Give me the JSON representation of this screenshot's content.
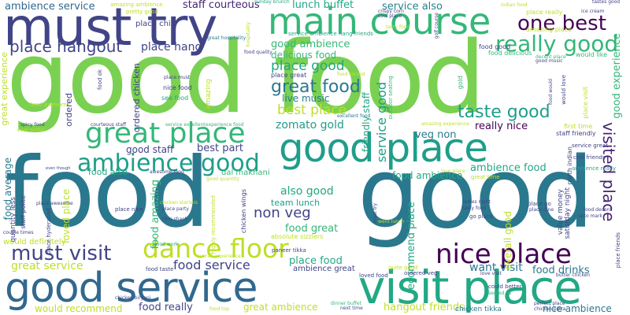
{
  "palette": [
    "#7ad151",
    "#22a884",
    "#2a788e",
    "#414487",
    "#440154",
    "#bddf26",
    "#35b779",
    "#31688e",
    "#482475",
    "#1f9e89",
    "#d8e219"
  ],
  "words": {
    "good_food": "good food",
    "must_try": "must try",
    "main_course": "main course",
    "food": "food",
    "good": "good",
    "good_service": "good service",
    "visit_place": "visit place",
    "good_place": "good place",
    "great_place": "great place",
    "nice_place": "nice place",
    "really_good": "really good",
    "ambience_good": "ambience good",
    "dance_floor": "dance floor",
    "must_visit": "must visit",
    "one_best": "one best",
    "place_hangout": "place hangout",
    "great_food": "great food",
    "taste_good": "taste good",
    "ambience_service": "ambience service",
    "staff_courteous": "staff courteous",
    "lunch_buffet": "lunch buffet",
    "service_also": "service also",
    "place_hang": "place hang",
    "place_chill": "place chill",
    "good_ambience": "good ambience",
    "place_good": "place good",
    "delicious_food": "delicious food",
    "best_place": "best place",
    "live_music": "live music",
    "zomato_gold": "zomato gold",
    "service_good": "service good",
    "friendly_staff": "friendly staff",
    "really_nice": "really nice",
    "veg_non": "veg non",
    "food_ambience": "food ambience",
    "ambience_food": "ambience food",
    "visited_place": "visited place",
    "food_average": "food average",
    "good_staff": "good staff",
    "best_part": "best part",
    "food_also": "food also",
    "loved_place": "loved place",
    "food_amazing": "food amazing",
    "also_good": "also good",
    "non_veg": "non veg",
    "food_great": "food great",
    "food_service": "food service",
    "team_lunch": "team lunch",
    "place_food": "place food",
    "food_drinks": "food drinks",
    "great_service": "great service",
    "want_visit": "want visit",
    "recommend_place": "recommend place",
    "overall_good": "overall good",
    "would_recommend": "would recommend",
    "food_really": "food really",
    "great_ambience": "great ambience",
    "hangout_friends": "hangout friends",
    "nice_ambience": "nice ambience",
    "place_visit": "place visit",
    "tasted_good": "tasted good",
    "ambience_great": "ambience great",
    "chicken_tikka": "chicken tikka",
    "serve_good": "service good",
    "value_money": "value money",
    "saturday_night": "saturday night",
    "place_hangout2": "place friends",
    "staff_friendly": "staff friendly",
    "service_great": "service great",
    "chill_friends": "chill friends",
    "ambience_really": "ambience really",
    "would_definitely": "would definitely",
    "quantity_less": "quantity less",
    "staff_polite": "staff polite",
    "place_hyderabad": "place hyderabad",
    "food_ok": "food ok",
    "food_good": "food good",
    "amazing_place": "amazing place",
    "place_really": "place really",
    "pretty_good": "pretty good",
    "buffet_spread": "buffet spread",
    "amazing_ambience": "amazing ambience",
    "great_hospitality": "great hospitality",
    "crispy_corn": "crispy corn",
    "cool_place": "cool place",
    "tasty_food": "tasty food",
    "indian_food": "indian food",
    "ice_cream": "ice cream",
    "tastes_good": "tastes good",
    "golf_course": "golf course",
    "service_ambience": "service ambience",
    "hang_friends": "hang friends",
    "good_music": "good music",
    "food_delicious": "food delicious",
    "decent_place": "decent place",
    "would_like": "would like",
    "good_experience": "good experience",
    "great_experience": "great experience",
    "ordered_chicken": "ordered chicken",
    "food_quality": "food quality",
    "place_great": "place great",
    "food_served": "food served",
    "great_taste": "great taste",
    "nice_food": "nice food",
    "sea_food": "sea food",
    "place_must": "place must",
    "food_awesome": "food awesome",
    "spicy_food": "spicy food",
    "even_better": "even better",
    "courteous_staff": "courteous staff",
    "service_excellent": "service excellent",
    "experience_food": "experience food",
    "excellent_food": "excellent food",
    "amazing_food": "amazing food",
    "amazing_experience": "amazing experience",
    "first_time": "first time",
    "service_great2": "service great",
    "north_indian": "north indian",
    "love_place": "love place",
    "great_time": "great time",
    "ordered": "ordered",
    "sunday_brunch": "sunday brunch",
    "amazing": "amazing",
    "awesome_food": "awesome food",
    "dal_makhani": "dal makhani",
    "good_quantity": "good quantity",
    "even_though": "even though",
    "couple_times": "couple times",
    "place_awesome": "place awesome",
    "place_nice": "place nice",
    "chicken_wings": "chicken wings",
    "place_party": "place party",
    "tikki_shack": "tikki shack",
    "chicken_starters": "chicken starters",
    "highly_recommended": "highly recommended",
    "must_try2": "must try",
    "absolute_sizzlers": "absolute sizzlers",
    "paneer_tikka": "paneer tikka",
    "food_taste": "food taste",
    "overall_experience": "overall experience",
    "good_work": "good work",
    "quite_good": "quite good",
    "loved_food": "loved food",
    "ordered_veg": "ordered veg",
    "could_better": "could better",
    "served_us": "served us",
    "dinner_buffet": "dinner buffet",
    "next_time": "next time",
    "food_top": "food top",
    "chicken_biryani": "chicken biryani",
    "perfect_place": "perfect place",
    "chicken_pizza": "chicken pizza",
    "butter_chicken": "butter chicken",
    "ladies_night": "ladies night",
    "tasty_food2": "tasty food",
    "go_place": "go place",
    "place_go": "place go",
    "place_dine": "place dine",
    "food_decent": "food decent",
    "upto_mark": "upto mark",
    "went_lunch": "went lunch",
    "food_would": "food would",
    "love_visit": "love visit",
    "hospitality": "hospitality",
    "gold": "gold",
    "would_love": "would love",
    "place_visit2": "place visit",
    "outdoor_seating": "outdoor seating"
  }
}
